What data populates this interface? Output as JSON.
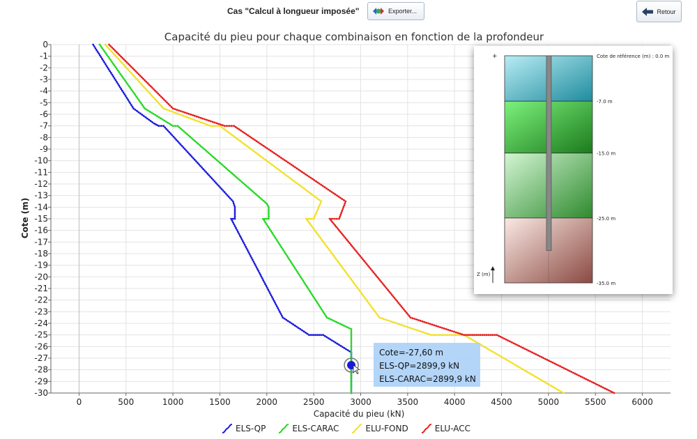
{
  "toolbar": {
    "title": "Cas \"Calcul à longueur imposée\"",
    "export_label": "Exporter...",
    "back_label": "Retour"
  },
  "chart_data": {
    "type": "line",
    "title": "Capacité du pieu pour chaque combinaison en fonction de la profondeur",
    "xlabel": "Capacité du pieu (kN)",
    "ylabel": "Cote (m)",
    "xlim": [
      -300,
      6300
    ],
    "ylim": [
      -30,
      0
    ],
    "xticks": [
      0,
      500,
      1000,
      1500,
      2000,
      2500,
      3000,
      3500,
      4000,
      4500,
      5000,
      5500,
      6000
    ],
    "yticks": [
      0,
      -1,
      -2,
      -3,
      -4,
      -5,
      -6,
      -7,
      -8,
      -9,
      -10,
      -11,
      -12,
      -13,
      -14,
      -15,
      -16,
      -17,
      -18,
      -19,
      -20,
      -21,
      -22,
      -23,
      -24,
      -25,
      -26,
      -27,
      -28,
      -29,
      -30
    ],
    "grid": true,
    "legend_position": "bottom",
    "series": [
      {
        "name": "ELS-QP",
        "color": "#1a1adc",
        "points": [
          [
            150,
            0
          ],
          [
            580,
            -5.5
          ],
          [
            800,
            -6.8
          ],
          [
            850,
            -7
          ],
          [
            900,
            -7
          ],
          [
            1640,
            -13.5
          ],
          [
            1660,
            -14
          ],
          [
            1660,
            -15
          ],
          [
            1620,
            -15
          ],
          [
            2170,
            -23.5
          ],
          [
            2450,
            -25
          ],
          [
            2600,
            -25
          ],
          [
            2899.9,
            -26.5
          ],
          [
            2899.9,
            -30
          ]
        ]
      },
      {
        "name": "ELS-CARAC",
        "color": "#22d822",
        "points": [
          [
            220,
            0
          ],
          [
            700,
            -5.5
          ],
          [
            1000,
            -7
          ],
          [
            1050,
            -7
          ],
          [
            2000,
            -13.7
          ],
          [
            2020,
            -14
          ],
          [
            2020,
            -15
          ],
          [
            1960,
            -15
          ],
          [
            2640,
            -23.5
          ],
          [
            2899.9,
            -24.5
          ],
          [
            2899.9,
            -30
          ]
        ]
      },
      {
        "name": "ELU-FOND",
        "color": "#f2e024",
        "points": [
          [
            280,
            0
          ],
          [
            900,
            -5.5
          ],
          [
            1400,
            -7
          ],
          [
            1500,
            -7
          ],
          [
            2580,
            -13.5
          ],
          [
            2500,
            -15
          ],
          [
            2420,
            -15
          ],
          [
            3200,
            -23.5
          ],
          [
            3750,
            -25
          ],
          [
            4100,
            -25
          ],
          [
            5160,
            -30
          ]
        ]
      },
      {
        "name": "ELU-ACC",
        "color": "#e61e1e",
        "points": [
          [
            320,
            0
          ],
          [
            1000,
            -5.5
          ],
          [
            1550,
            -7
          ],
          [
            1650,
            -7
          ],
          [
            2840,
            -13.5
          ],
          [
            2770,
            -15
          ],
          [
            2670,
            -15
          ],
          [
            3530,
            -23.5
          ],
          [
            4100,
            -25
          ],
          [
            4450,
            -25
          ],
          [
            5700,
            -30
          ]
        ]
      }
    ],
    "hover": {
      "x": 2899.9,
      "y": -27.6,
      "color": "#1a1adc"
    }
  },
  "tooltip": {
    "line1": "Cote=-27,60 m",
    "line2": "ELS-QP=2899,9 kN",
    "line3": "ELS-CARAC=2899,9 kN"
  },
  "soil_profile": {
    "plus_label": "+",
    "reference_label": "Cote de référence (m) : 0.0 m",
    "axis_label": "Z (m)",
    "layers": [
      {
        "top": 0,
        "bottom": -7,
        "bottom_label": "-7.0 m",
        "color_light": "#b8ecf4",
        "color_dark": "#1f8c9e"
      },
      {
        "top": -7,
        "bottom": -15,
        "bottom_label": "-15.0 m",
        "color_light": "#7cf27c",
        "color_dark": "#1c7a1c"
      },
      {
        "top": -15,
        "bottom": -25,
        "bottom_label": "-25.0 m",
        "color_light": "#d4f6d4",
        "color_dark": "#2e8a2e"
      },
      {
        "top": -25,
        "bottom": -35,
        "bottom_label": "-35.0 m",
        "color_light": "#fbe9e4",
        "color_dark": "#8a4a42"
      }
    ],
    "pile_length": -30,
    "pile_color": "#888888"
  }
}
